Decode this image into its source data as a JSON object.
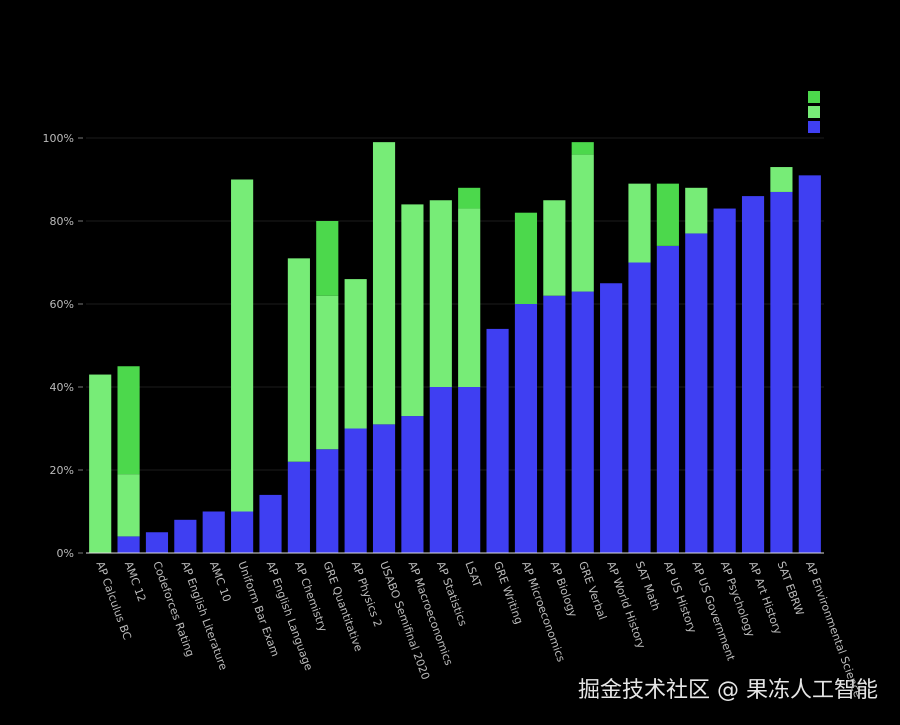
{
  "chart_data": {
    "type": "stacked-bar",
    "categories": [
      "AP Calculus BC",
      "AMC 12",
      "Codeforces Rating",
      "AP English Literature",
      "AMC 10",
      "Uniform Bar Exam",
      "AP English Language",
      "AP Chemistry",
      "GRE Quantitative",
      "AP Physics 2",
      "USABO Semifinal 2020",
      "AP Macroeconomics",
      "AP Statistics",
      "LSAT",
      "GRE Writing",
      "AP Microeconomics",
      "AP Biology",
      "GRE Verbal",
      "AP World History",
      "SAT Math",
      "AP US History",
      "AP US Government",
      "AP Psychology",
      "AP Art History",
      "SAT EBRW",
      "AP Environmental Science"
    ],
    "series": [
      {
        "color": "#3f3ff2",
        "values": [
          0,
          4,
          5,
          8,
          10,
          10,
          14,
          22,
          25,
          30,
          31,
          33,
          40,
          40,
          54,
          60,
          62,
          63,
          65,
          70,
          74,
          77,
          83,
          86,
          87,
          91
        ]
      },
      {
        "color": "#77ec77",
        "values": [
          43,
          15,
          0,
          0,
          0,
          80,
          0,
          49,
          37,
          36,
          68,
          51,
          45,
          43,
          0,
          0,
          23,
          33,
          0,
          19,
          0,
          11,
          0,
          0,
          6,
          0
        ]
      },
      {
        "color": "#4cd84c",
        "values": [
          0,
          26,
          0,
          0,
          0,
          0,
          0,
          0,
          18,
          0,
          0,
          0,
          0,
          5,
          0,
          22,
          0,
          3,
          0,
          0,
          15,
          0,
          0,
          0,
          0,
          0
        ]
      }
    ],
    "ylim": [
      0,
      100
    ],
    "yticks": [
      {
        "value": 0,
        "label": "0%"
      },
      {
        "value": 20,
        "label": "20%"
      },
      {
        "value": 40,
        "label": "40%"
      },
      {
        "value": 60,
        "label": "60%"
      },
      {
        "value": 80,
        "label": "80%"
      },
      {
        "value": 100,
        "label": "100%"
      }
    ],
    "grid": true
  },
  "watermark": "掘金技术社区 @ 果冻人工智能"
}
